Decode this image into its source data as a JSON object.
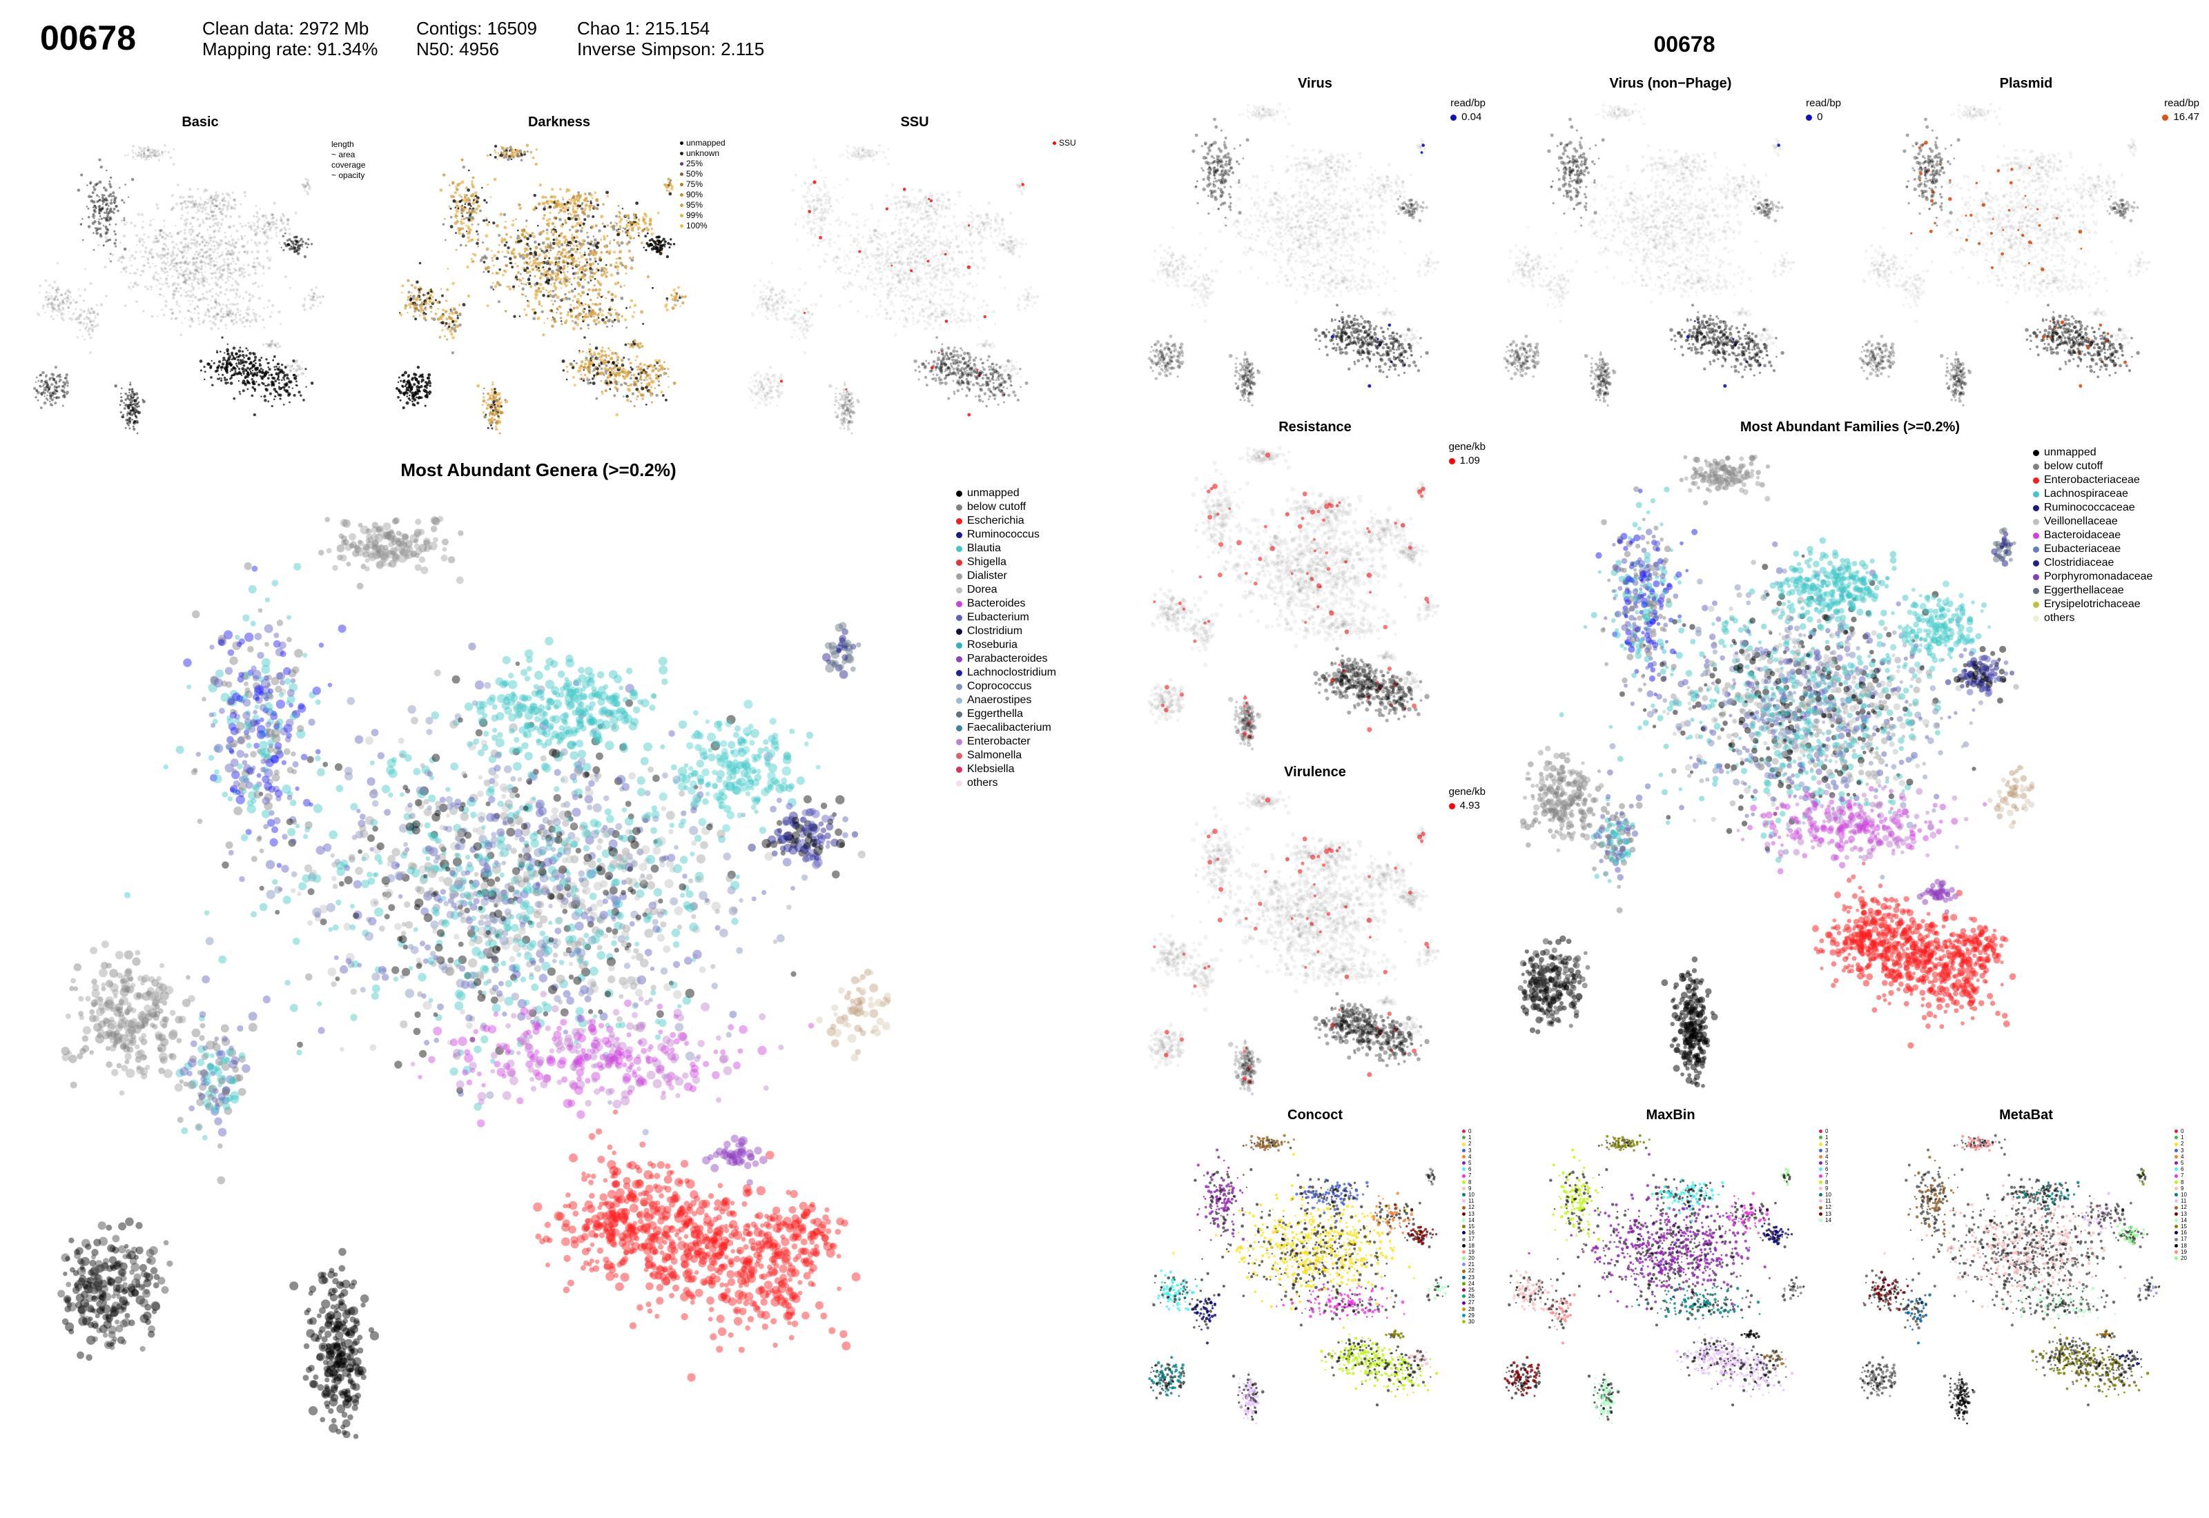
{
  "header": {
    "sample_id": "00678",
    "right_title": "00678",
    "stats": {
      "clean_data": "Clean data: 2972 Mb",
      "mapping_rate": "Mapping rate: 91.34%",
      "contigs": "Contigs: 16509",
      "n50": "N50: 4956",
      "chao1": "Chao 1: 215.154",
      "inverse_simpson": "Inverse Simpson: 2.115"
    }
  },
  "colors": {
    "unmapped": "#000000",
    "below_cutoff": "#808080",
    "red": "#ff0000",
    "cyan": "#40d0d0",
    "blue": "#1a1aff",
    "violet": "#d040e0",
    "orange": "#e8a030",
    "virus": "#1010c0",
    "plasmid": "#e05010"
  },
  "chart_data": [
    {
      "type": "scatter",
      "title": "Basic",
      "legend": [
        "length",
        "~ area",
        "coverage",
        "~ opacity"
      ],
      "legend_position": "top-right"
    },
    {
      "type": "scatter",
      "title": "Darkness",
      "legend": [
        {
          "label": "unmapped",
          "color": "#000000"
        },
        {
          "label": "unknown",
          "color": "#222222"
        },
        {
          "label": "25%",
          "color": "#5a3a7a"
        },
        {
          "label": "50%",
          "color": "#8a5a30"
        },
        {
          "label": "75%",
          "color": "#b07a20"
        },
        {
          "label": "90%",
          "color": "#c89030"
        },
        {
          "label": "95%",
          "color": "#d8a040"
        },
        {
          "label": "99%",
          "color": "#e6ae48"
        },
        {
          "label": "100%",
          "color": "#f0b850"
        }
      ],
      "legend_position": "top-right"
    },
    {
      "type": "scatter",
      "title": "SSU",
      "legend": [
        {
          "label": "SSU",
          "color": "#ff0000"
        }
      ],
      "legend_position": "top-right"
    },
    {
      "type": "scatter",
      "title": "Virus",
      "legend_head": "read/bp",
      "legend": [
        {
          "label": "0.04",
          "color": "#1010c0"
        }
      ]
    },
    {
      "type": "scatter",
      "title": "Virus (non−Phage)",
      "legend_head": "read/bp",
      "legend": [
        {
          "label": "0",
          "color": "#1010c0"
        }
      ]
    },
    {
      "type": "scatter",
      "title": "Plasmid",
      "legend_head": "read/bp",
      "legend": [
        {
          "label": "16.47",
          "color": "#e05010"
        }
      ]
    },
    {
      "type": "scatter",
      "title": "Resistance",
      "legend_head": "gene/kb",
      "legend": [
        {
          "label": "1.09",
          "color": "#ff0000"
        }
      ]
    },
    {
      "type": "scatter",
      "title": "Virulence",
      "legend_head": "gene/kb",
      "legend": [
        {
          "label": "4.93",
          "color": "#ff0000"
        }
      ]
    },
    {
      "type": "scatter",
      "title": "Most Abundant Genera (>=0.2%)",
      "legend_position": "top-right",
      "legend": [
        {
          "label": "unmapped",
          "color": "#000000"
        },
        {
          "label": "below cutoff",
          "color": "#808080"
        },
        {
          "label": "Escherichia",
          "color": "#ff1a1a"
        },
        {
          "label": "Ruminococcus",
          "color": "#1a1a8c"
        },
        {
          "label": "Blautia",
          "color": "#40c8c8"
        },
        {
          "label": "Shigella",
          "color": "#e83030"
        },
        {
          "label": "Dialister",
          "color": "#a0a0a0"
        },
        {
          "label": "Dorea",
          "color": "#c0c0c0"
        },
        {
          "label": "Bacteroides",
          "color": "#d040e0"
        },
        {
          "label": "Eubacterium",
          "color": "#6060c0"
        },
        {
          "label": "Clostridium",
          "color": "#101040"
        },
        {
          "label": "Roseburia",
          "color": "#30b0c0"
        },
        {
          "label": "Parabacteroides",
          "color": "#9040c0"
        },
        {
          "label": "Lachnoclostridium",
          "color": "#2020a0"
        },
        {
          "label": "Coprococcus",
          "color": "#8090c0"
        },
        {
          "label": "Anaerostipes",
          "color": "#a0b8d0"
        },
        {
          "label": "Eggerthella",
          "color": "#607080"
        },
        {
          "label": "Faecalibacterium",
          "color": "#4080a0"
        },
        {
          "label": "Enterobacter",
          "color": "#c080d0"
        },
        {
          "label": "Salmonella",
          "color": "#e06070"
        },
        {
          "label": "Klebsiella",
          "color": "#e03060"
        },
        {
          "label": "others",
          "color": "#f4e0f0"
        }
      ]
    },
    {
      "type": "scatter",
      "title": "Most Abundant Families (>=0.2%)",
      "legend_position": "top-right",
      "legend": [
        {
          "label": "unmapped",
          "color": "#000000"
        },
        {
          "label": "below cutoff",
          "color": "#808080"
        },
        {
          "label": "Enterobacteriaceae",
          "color": "#ff1a1a"
        },
        {
          "label": "Lachnospiraceae",
          "color": "#40c8c8"
        },
        {
          "label": "Ruminococcaceae",
          "color": "#1a1a8c"
        },
        {
          "label": "Veillonellaceae",
          "color": "#c0c0c0"
        },
        {
          "label": "Bacteroidaceae",
          "color": "#d040e0"
        },
        {
          "label": "Eubacteriaceae",
          "color": "#6080c0"
        },
        {
          "label": "Clostridiaceae",
          "color": "#202080"
        },
        {
          "label": "Porphyromonadaceae",
          "color": "#8040c0"
        },
        {
          "label": "Eggerthellaceae",
          "color": "#607080"
        },
        {
          "label": "Erysipelotrichaceae",
          "color": "#c0c040"
        },
        {
          "label": "others",
          "color": "#f0f0d0"
        }
      ]
    },
    {
      "type": "scatter",
      "title": "Concoct",
      "legend": [
        {
          "label": "0"
        },
        {
          "label": "1"
        },
        {
          "label": "2"
        },
        {
          "label": "3"
        },
        {
          "label": "4"
        },
        {
          "label": "5"
        },
        {
          "label": "6"
        },
        {
          "label": "7"
        },
        {
          "label": "8"
        },
        {
          "label": "9"
        },
        {
          "label": "10"
        },
        {
          "label": "11"
        },
        {
          "label": "12"
        },
        {
          "label": "13"
        },
        {
          "label": "14"
        },
        {
          "label": "15"
        },
        {
          "label": "16"
        },
        {
          "label": "17"
        },
        {
          "label": "18"
        },
        {
          "label": "19"
        },
        {
          "label": "20"
        },
        {
          "label": "21"
        },
        {
          "label": "22"
        },
        {
          "label": "23"
        },
        {
          "label": "24"
        },
        {
          "label": "25"
        },
        {
          "label": "26"
        },
        {
          "label": "27"
        },
        {
          "label": "28"
        },
        {
          "label": "29"
        },
        {
          "label": "30"
        }
      ]
    },
    {
      "type": "scatter",
      "title": "MaxBin",
      "legend": [
        {
          "label": "0"
        },
        {
          "label": "1"
        },
        {
          "label": "2"
        },
        {
          "label": "3"
        },
        {
          "label": "4"
        },
        {
          "label": "5"
        },
        {
          "label": "6"
        },
        {
          "label": "7"
        },
        {
          "label": "8"
        },
        {
          "label": "9"
        },
        {
          "label": "10"
        },
        {
          "label": "11"
        },
        {
          "label": "12"
        },
        {
          "label": "13"
        },
        {
          "label": "14"
        }
      ]
    },
    {
      "type": "scatter",
      "title": "MetaBat",
      "legend": [
        {
          "label": "0"
        },
        {
          "label": "1"
        },
        {
          "label": "2"
        },
        {
          "label": "3"
        },
        {
          "label": "4"
        },
        {
          "label": "5"
        },
        {
          "label": "6"
        },
        {
          "label": "7"
        },
        {
          "label": "8"
        },
        {
          "label": "9"
        },
        {
          "label": "10"
        },
        {
          "label": "11"
        },
        {
          "label": "12"
        },
        {
          "label": "13"
        },
        {
          "label": "14"
        },
        {
          "label": "15"
        },
        {
          "label": "16"
        },
        {
          "label": "17"
        },
        {
          "label": "18"
        },
        {
          "label": "19"
        },
        {
          "label": "20"
        }
      ]
    }
  ]
}
